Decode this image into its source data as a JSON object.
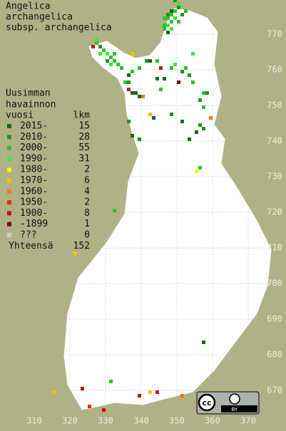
{
  "map": {
    "title": [
      "Angelica",
      "archangelica",
      "subsp. archangelica"
    ],
    "legend": {
      "header": [
        "Uusimman",
        "havainnon"
      ],
      "year_heading": "vuosi",
      "count_heading": "lkm",
      "items": [
        {
          "label": "2015-",
          "count": 15,
          "color": "#136a13"
        },
        {
          "label": "2010-",
          "count": 28,
          "color": "#1f931f"
        },
        {
          "label": "2000-",
          "count": 55,
          "color": "#2fc12f"
        },
        {
          "label": "1990-",
          "count": 31,
          "color": "#3fe63f"
        },
        {
          "label": "1980-",
          "count": 2,
          "color": "#f6f600"
        },
        {
          "label": "1970-",
          "count": 6,
          "color": "#f2c200"
        },
        {
          "label": "1960-",
          "count": 4,
          "color": "#f07818"
        },
        {
          "label": "1950-",
          "count": 2,
          "color": "#e03010"
        },
        {
          "label": "1900-",
          "count": 8,
          "color": "#c81010"
        },
        {
          "label": "-1899",
          "count": 1,
          "color": "#7a0a0a"
        },
        {
          "label": "???",
          "count": 0,
          "color": "#cccccc"
        }
      ],
      "total_label": "Yhteensä",
      "total": 152
    },
    "xticks": [
      310,
      320,
      330,
      340,
      350,
      360,
      370
    ],
    "yticks": [
      670,
      680,
      690,
      700,
      710,
      720,
      730,
      740,
      750,
      760,
      770
    ],
    "license": {
      "icon": "cc",
      "label": "BY"
    },
    "squares": [
      [
        346,
        774,
        2
      ],
      [
        347,
        774,
        2
      ],
      [
        347,
        775,
        1
      ],
      [
        348,
        775,
        2
      ],
      [
        348,
        776,
        0
      ],
      [
        349,
        776,
        2
      ],
      [
        350,
        777,
        1
      ],
      [
        349,
        774,
        3
      ],
      [
        346,
        772,
        2
      ],
      [
        347,
        772,
        3
      ],
      [
        348,
        773,
        2
      ],
      [
        350,
        773,
        2
      ],
      [
        351,
        775,
        1
      ],
      [
        346,
        771,
        2
      ],
      [
        347,
        770,
        0
      ],
      [
        348,
        771,
        3
      ],
      [
        352,
        776,
        2
      ],
      [
        350,
        778,
        3
      ],
      [
        349,
        779,
        1
      ],
      [
        326,
        766,
        8
      ],
      [
        327,
        767,
        2
      ],
      [
        328,
        766,
        1
      ],
      [
        329,
        765,
        2
      ],
      [
        330,
        764,
        3
      ],
      [
        331,
        763,
        2
      ],
      [
        332,
        762,
        2
      ],
      [
        331,
        761,
        3
      ],
      [
        333,
        761,
        2
      ],
      [
        330,
        762,
        1
      ],
      [
        328,
        764,
        3
      ],
      [
        334,
        760,
        2
      ],
      [
        332,
        764,
        2
      ],
      [
        327,
        768,
        3
      ],
      [
        337,
        764,
        5
      ],
      [
        339,
        760,
        2
      ],
      [
        336,
        758,
        0
      ],
      [
        335,
        756,
        2
      ],
      [
        336,
        756,
        1
      ],
      [
        336,
        754,
        8
      ],
      [
        337,
        753,
        0
      ],
      [
        338,
        753,
        0
      ],
      [
        339,
        752,
        0
      ],
      [
        340,
        752,
        6
      ],
      [
        337,
        759,
        2
      ],
      [
        342,
        762,
        0
      ],
      [
        344,
        762,
        2
      ],
      [
        345,
        760,
        8
      ],
      [
        348,
        760,
        2
      ],
      [
        351,
        759,
        1
      ],
      [
        344,
        757,
        0
      ],
      [
        350,
        756,
        9
      ],
      [
        349,
        761,
        3
      ],
      [
        352,
        760,
        2
      ],
      [
        354,
        764,
        3
      ],
      [
        341,
        762,
        1
      ],
      [
        353,
        758,
        1
      ],
      [
        354,
        756,
        2
      ],
      [
        357,
        753,
        2
      ],
      [
        358,
        753,
        1
      ],
      [
        356,
        751,
        1
      ],
      [
        357,
        749,
        2
      ],
      [
        359,
        746,
        6
      ],
      [
        357,
        743,
        1
      ],
      [
        356,
        744,
        1
      ],
      [
        355,
        742,
        0
      ],
      [
        351,
        745,
        0
      ],
      [
        348,
        747,
        1
      ],
      [
        345,
        754,
        2
      ],
      [
        346,
        757,
        0
      ],
      [
        342,
        747,
        5
      ],
      [
        343,
        746,
        0
      ],
      [
        336,
        745,
        1
      ],
      [
        337,
        741,
        0
      ],
      [
        339,
        740,
        1
      ],
      [
        353,
        740,
        0
      ],
      [
        355,
        731,
        4
      ],
      [
        356,
        732,
        2
      ],
      [
        332,
        720,
        2
      ],
      [
        321,
        708,
        5
      ],
      [
        357,
        683,
        0
      ],
      [
        331,
        672,
        2
      ],
      [
        315,
        669,
        5
      ],
      [
        323,
        670,
        8
      ],
      [
        325,
        665,
        7
      ],
      [
        329,
        664,
        8
      ],
      [
        339,
        668,
        8
      ],
      [
        342,
        669,
        5
      ],
      [
        344,
        669,
        8
      ],
      [
        351,
        668,
        6
      ]
    ]
  }
}
